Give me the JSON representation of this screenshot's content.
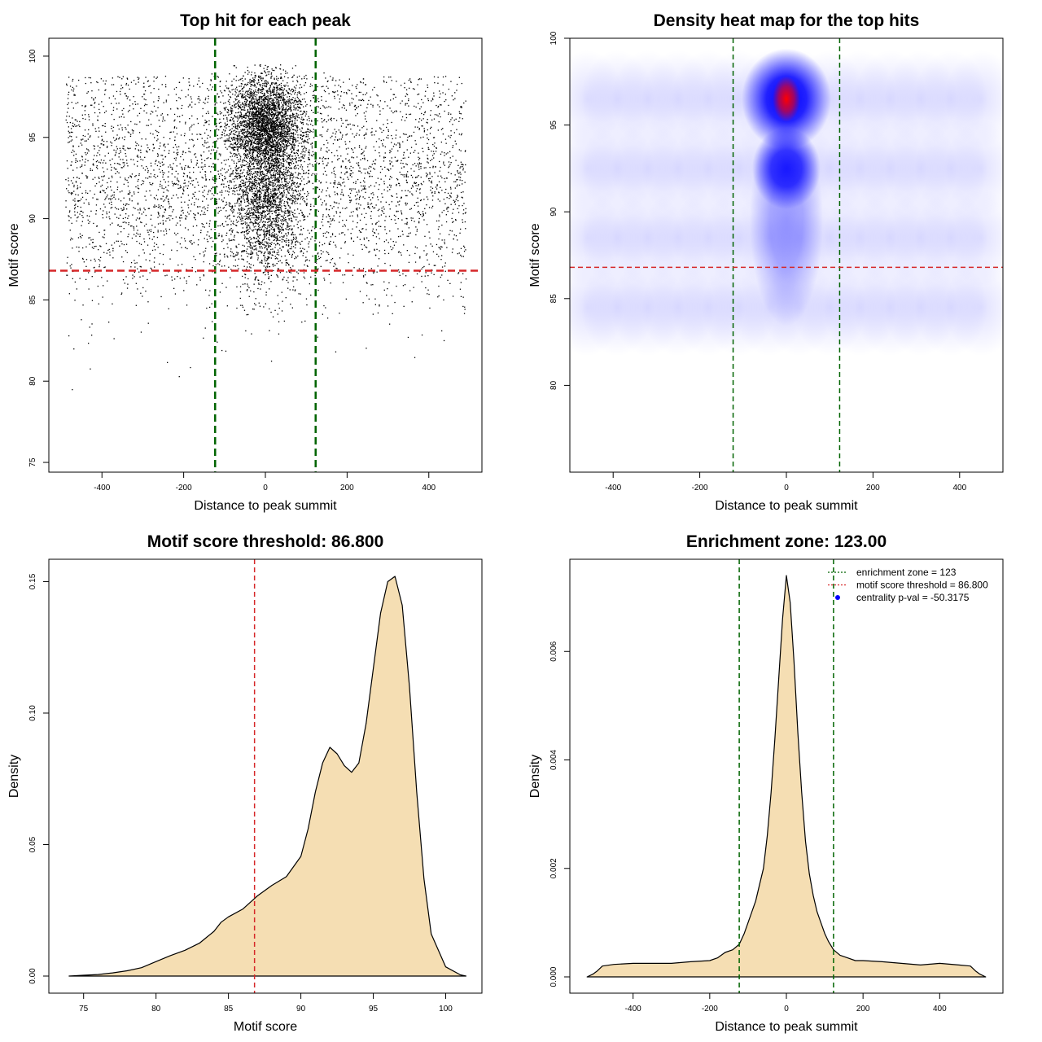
{
  "chart_data": [
    {
      "id": "scatter",
      "type": "scatter",
      "title": "Top hit for each peak",
      "xlabel": "Distance to peak summit",
      "ylabel": "Motif score",
      "xlim": [
        -530,
        530
      ],
      "ylim": [
        74.4,
        101.1
      ],
      "xticks": [
        "-400",
        "-200",
        "0",
        "200",
        "400"
      ],
      "yticks": [
        "75",
        "80",
        "85",
        "90",
        "95",
        "100"
      ],
      "xtick_values": [
        -400,
        -200,
        0,
        200,
        400
      ],
      "ytick_values": [
        75,
        80,
        85,
        90,
        95,
        100
      ],
      "point_color": "#000000",
      "approx_points": 9000,
      "point_distribution": {
        "background_x_range": [
          -490,
          490
        ],
        "background_score_mode": 92.5,
        "central_cluster_x_sd": 45,
        "central_cluster_score_range": [
          84,
          99.5
        ]
      },
      "vlines": [
        -123,
        123
      ],
      "vline_color": "#006400",
      "hline": 86.8,
      "hline_color": "#d62728"
    },
    {
      "id": "heatmap",
      "type": "heatmap",
      "title": "Density heat map for the top hits",
      "xlabel": "Distance to peak summit",
      "ylabel": "Motif score",
      "xlim": [
        -500,
        500
      ],
      "ylim": [
        75,
        100
      ],
      "xticks": [
        "-400",
        "-200",
        "0",
        "200",
        "400"
      ],
      "yticks": [
        "80",
        "85",
        "90",
        "95",
        "100"
      ],
      "xtick_values": [
        -400,
        -200,
        0,
        200,
        400
      ],
      "ytick_values": [
        80,
        85,
        90,
        95,
        100
      ],
      "colors": [
        "#ffffff",
        "#0000ff",
        "#ff0000"
      ],
      "hotspots": [
        {
          "x": 0,
          "y": 96.5,
          "intensity": "peak"
        },
        {
          "x": 0,
          "y": 92.5,
          "intensity": "high"
        }
      ],
      "vlines": [
        -123,
        123
      ],
      "vline_color": "#006400",
      "hline": 86.8,
      "hline_color": "#d62728"
    },
    {
      "id": "score-density",
      "type": "area",
      "title": "Motif score threshold: 86.800",
      "xlabel": "Motif score",
      "ylabel": "Density",
      "xlim": [
        72.6,
        102.5
      ],
      "ylim": [
        -0.0065,
        0.1585
      ],
      "xticks": [
        "75",
        "80",
        "85",
        "90",
        "95",
        "100"
      ],
      "yticks": [
        "0.00",
        "0.05",
        "0.10",
        "0.15"
      ],
      "xtick_values": [
        75,
        80,
        85,
        90,
        95,
        100
      ],
      "ytick_values": [
        0,
        0.05,
        0.1,
        0.15
      ],
      "fill_color": "#f5deb3",
      "x": [
        74,
        75,
        76,
        77,
        78,
        79,
        80,
        81,
        82,
        83,
        84,
        84.5,
        85,
        86,
        86.8,
        87,
        88,
        89,
        90,
        90.5,
        91,
        91.5,
        92,
        92.5,
        93,
        93.5,
        94,
        94.5,
        95,
        95.5,
        96,
        96.5,
        97,
        97.5,
        98,
        98.5,
        99,
        100,
        101,
        101.4
      ],
      "y": [
        0.0,
        0.0003,
        0.0006,
        0.0012,
        0.002,
        0.0032,
        0.0055,
        0.0078,
        0.0098,
        0.0125,
        0.017,
        0.0205,
        0.0225,
        0.0255,
        0.0295,
        0.0305,
        0.0345,
        0.0378,
        0.0455,
        0.056,
        0.07,
        0.081,
        0.087,
        0.0845,
        0.08,
        0.0775,
        0.081,
        0.096,
        0.117,
        0.138,
        0.15,
        0.152,
        0.141,
        0.11,
        0.07,
        0.037,
        0.016,
        0.0035,
        0.0005,
        0.0
      ],
      "vline": 86.8,
      "vline_color": "#d62728"
    },
    {
      "id": "distance-density",
      "type": "area",
      "title": "Enrichment zone: 123.00",
      "xlabel": "Distance to peak summit",
      "ylabel": "Density",
      "xlim": [
        -565,
        565
      ],
      "ylim": [
        -0.0003,
        0.0077
      ],
      "xticks": [
        "-400",
        "-200",
        "0",
        "200",
        "400"
      ],
      "yticks": [
        "0.000",
        "0.002",
        "0.004",
        "0.006"
      ],
      "xtick_values": [
        -400,
        -200,
        0,
        200,
        400
      ],
      "ytick_values": [
        0,
        0.002,
        0.004,
        0.006
      ],
      "fill_color": "#f5deb3",
      "x": [
        -520,
        -505,
        -495,
        -480,
        -450,
        -400,
        -350,
        -300,
        -250,
        -200,
        -180,
        -160,
        -140,
        -123,
        -110,
        -100,
        -90,
        -80,
        -70,
        -60,
        -50,
        -40,
        -30,
        -20,
        -10,
        0,
        10,
        20,
        30,
        40,
        50,
        60,
        70,
        80,
        90,
        100,
        110,
        123,
        140,
        160,
        180,
        200,
        250,
        300,
        350,
        400,
        450,
        480,
        495,
        505,
        520
      ],
      "y": [
        0.0,
        5e-05,
        0.0001,
        0.0002,
        0.00023,
        0.00025,
        0.00025,
        0.00025,
        0.00028,
        0.0003,
        0.00035,
        0.00045,
        0.0005,
        0.0006,
        0.0008,
        0.001,
        0.0012,
        0.0014,
        0.0017,
        0.002,
        0.0026,
        0.0034,
        0.0044,
        0.0055,
        0.0066,
        0.0074,
        0.0069,
        0.0058,
        0.0045,
        0.0034,
        0.0025,
        0.0019,
        0.0015,
        0.0012,
        0.001,
        0.0008,
        0.00065,
        0.0005,
        0.0004,
        0.00035,
        0.0003,
        0.0003,
        0.00028,
        0.00025,
        0.00022,
        0.00025,
        0.00022,
        0.0002,
        0.0001,
        5e-05,
        0.0
      ],
      "vlines": [
        -123,
        123
      ],
      "vline_color": "#006400",
      "legend": {
        "position": "top-right",
        "entries": [
          {
            "label": "enrichment zone = 123",
            "color": "#006400",
            "kind": "dotted-line"
          },
          {
            "label": "motif score threshold = 86.800",
            "color": "#d62728",
            "kind": "dotted-line"
          },
          {
            "label": "centrality p-val = -50.3175",
            "color": "#0000ff",
            "kind": "point"
          }
        ]
      }
    }
  ]
}
